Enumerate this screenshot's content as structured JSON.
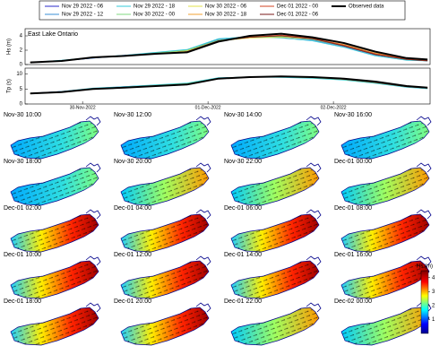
{
  "chart_data": [
    {
      "type": "line",
      "title": "East Lake Ontario",
      "ylabel": "Hs (m)",
      "x": [
        -10,
        -4,
        2,
        8,
        14,
        20,
        26,
        32,
        38,
        44,
        50,
        56,
        62,
        66
      ],
      "xlim": [
        -11,
        66.5
      ],
      "ylim": [
        0,
        5
      ],
      "yticks": [
        0,
        2,
        4
      ],
      "series": [
        {
          "name": "Nov 29 2022 - 06",
          "color": "#2929c8",
          "values": [
            0.3,
            0.5,
            0.9,
            1.3,
            1.6,
            1.9,
            3.4,
            3.9,
            3.8,
            3.5,
            2.6,
            1.4,
            0.7,
            0.6
          ]
        },
        {
          "name": "Nov 29 2022 - 12",
          "color": "#3a8fd6",
          "values": [
            0.3,
            0.5,
            0.9,
            1.2,
            1.6,
            2.0,
            3.5,
            3.8,
            3.9,
            3.4,
            2.5,
            1.3,
            0.7,
            0.5
          ]
        },
        {
          "name": "Nov 29 2022 - 18",
          "color": "#33c9d9",
          "values": [
            0.3,
            0.6,
            1.0,
            1.3,
            1.7,
            2.1,
            3.6,
            3.9,
            3.7,
            3.3,
            2.4,
            1.2,
            0.6,
            0.5
          ]
        },
        {
          "name": "Nov 30 2022 - 00",
          "color": "#7fd97f",
          "values": [
            0.3,
            0.5,
            1.0,
            1.2,
            1.6,
            2.0,
            3.4,
            3.8,
            3.9,
            3.5,
            2.6,
            1.4,
            0.7,
            0.6
          ]
        },
        {
          "name": "Nov 30 2022 - 06",
          "color": "#e0e04a",
          "values": [
            0.3,
            0.5,
            1.0,
            1.2,
            1.5,
            1.9,
            3.3,
            3.7,
            3.8,
            3.6,
            2.7,
            1.5,
            0.8,
            0.6
          ]
        },
        {
          "name": "Nov 30 2022 - 18",
          "color": "#f0a030",
          "values": [
            0.3,
            0.5,
            1.0,
            1.2,
            1.5,
            1.8,
            3.2,
            3.9,
            4.0,
            3.6,
            2.8,
            1.6,
            0.8,
            0.6
          ]
        },
        {
          "name": "Dec 01 2022 - 00",
          "color": "#d04020",
          "values": [
            0.3,
            0.5,
            1.0,
            1.2,
            1.5,
            1.8,
            3.3,
            3.8,
            4.1,
            3.7,
            2.7,
            1.5,
            0.8,
            0.6
          ]
        },
        {
          "name": "Dec 01 2022 - 06",
          "color": "#7a1a1a",
          "values": [
            0.3,
            0.5,
            1.0,
            1.2,
            1.5,
            1.8,
            3.3,
            3.8,
            4.0,
            3.6,
            2.6,
            1.4,
            0.7,
            0.5
          ]
        },
        {
          "name": "Observed data",
          "color": "#000000",
          "width": 2,
          "values": [
            0.3,
            0.5,
            1.0,
            1.2,
            1.5,
            1.7,
            3.2,
            4.0,
            4.3,
            3.8,
            3.0,
            1.8,
            0.9,
            0.7
          ]
        }
      ]
    },
    {
      "type": "line",
      "ylabel": "Tp (s)",
      "x": [
        -10,
        -4,
        2,
        8,
        14,
        20,
        26,
        32,
        38,
        44,
        50,
        56,
        62,
        66
      ],
      "xlim": [
        -11,
        66.5
      ],
      "ylim": [
        0,
        12
      ],
      "yticks": [
        0,
        5,
        10
      ],
      "xticks": [
        {
          "value": 0,
          "label": "30-Nov-2022"
        },
        {
          "value": 24,
          "label": "01-Dec-2022"
        },
        {
          "value": 48,
          "label": "02-Dec-2022"
        }
      ],
      "series": [
        {
          "name": "Nov 29 2022 - 06",
          "color": "#2929c8",
          "values": [
            3.6,
            4.2,
            5.2,
            5.8,
            6.3,
            6.8,
            8.6,
            9.0,
            9.0,
            8.8,
            8.2,
            7.2,
            5.8,
            5.3
          ]
        },
        {
          "name": "Nov 29 2022 - 12",
          "color": "#3a8fd6",
          "values": [
            3.6,
            4.1,
            5.1,
            5.7,
            6.2,
            6.9,
            8.7,
            9.1,
            9.0,
            8.7,
            8.1,
            7.0,
            5.7,
            5.2
          ]
        },
        {
          "name": "Nov 29 2022 - 18",
          "color": "#33c9d9",
          "values": [
            3.5,
            4.2,
            5.3,
            5.8,
            6.4,
            7.0,
            8.8,
            9.0,
            8.9,
            8.6,
            8.0,
            6.9,
            5.6,
            5.1
          ]
        },
        {
          "name": "Nov 30 2022 - 00",
          "color": "#7fd97f",
          "values": [
            3.5,
            4.0,
            5.0,
            5.6,
            6.2,
            6.8,
            8.6,
            9.1,
            9.1,
            8.8,
            8.2,
            7.1,
            5.8,
            5.3
          ]
        },
        {
          "name": "Nov 30 2022 - 06",
          "color": "#e0e04a",
          "values": [
            3.5,
            4.0,
            5.0,
            5.5,
            6.1,
            6.6,
            8.5,
            9.0,
            9.2,
            8.9,
            8.3,
            7.3,
            5.9,
            5.4
          ]
        },
        {
          "name": "Nov 30 2022 - 18",
          "color": "#f0a030",
          "values": [
            3.5,
            4.0,
            5.0,
            5.5,
            6.0,
            6.5,
            8.4,
            9.1,
            9.2,
            9.0,
            8.4,
            7.4,
            6.0,
            5.5
          ]
        },
        {
          "name": "Dec 01 2022 - 00",
          "color": "#d04020",
          "values": [
            3.5,
            4.0,
            5.0,
            5.5,
            6.0,
            6.5,
            8.5,
            9.0,
            9.3,
            9.0,
            8.3,
            7.3,
            5.9,
            5.4
          ]
        },
        {
          "name": "Dec 01 2022 - 06",
          "color": "#7a1a1a",
          "values": [
            3.5,
            4.0,
            5.0,
            5.5,
            6.0,
            6.5,
            8.5,
            9.0,
            9.2,
            8.9,
            8.3,
            7.2,
            5.8,
            5.3
          ]
        },
        {
          "name": "Observed data",
          "color": "#000000",
          "width": 2,
          "values": [
            3.5,
            4.0,
            5.0,
            5.5,
            6.0,
            6.5,
            8.5,
            9.0,
            9.2,
            9.0,
            8.5,
            7.5,
            6.0,
            5.5
          ]
        }
      ]
    }
  ],
  "maps": {
    "titles": [
      "Nov-30 10:00",
      "Nov-30 12:00",
      "Nov-30 14:00",
      "Nov-30 16:00",
      "Nov-30 18:00",
      "Nov-30 20:00",
      "Nov-30 22:00",
      "Dec-01 00:00",
      "Dec-01 02:00",
      "Dec-01 04:00",
      "Dec-01 06:00",
      "Dec-01 08:00",
      "Dec-01 10:00",
      "Dec-01 12:00",
      "Dec-01 14:00",
      "Dec-01 16:00",
      "Dec-01 18:00",
      "Dec-01 20:00",
      "Dec-01 22:00",
      "Dec-02 00:00"
    ]
  },
  "colorbar": {
    "label": "Hs (m)",
    "lim": [
      0,
      4.5
    ],
    "ticks": [
      1,
      2,
      3,
      4
    ]
  }
}
